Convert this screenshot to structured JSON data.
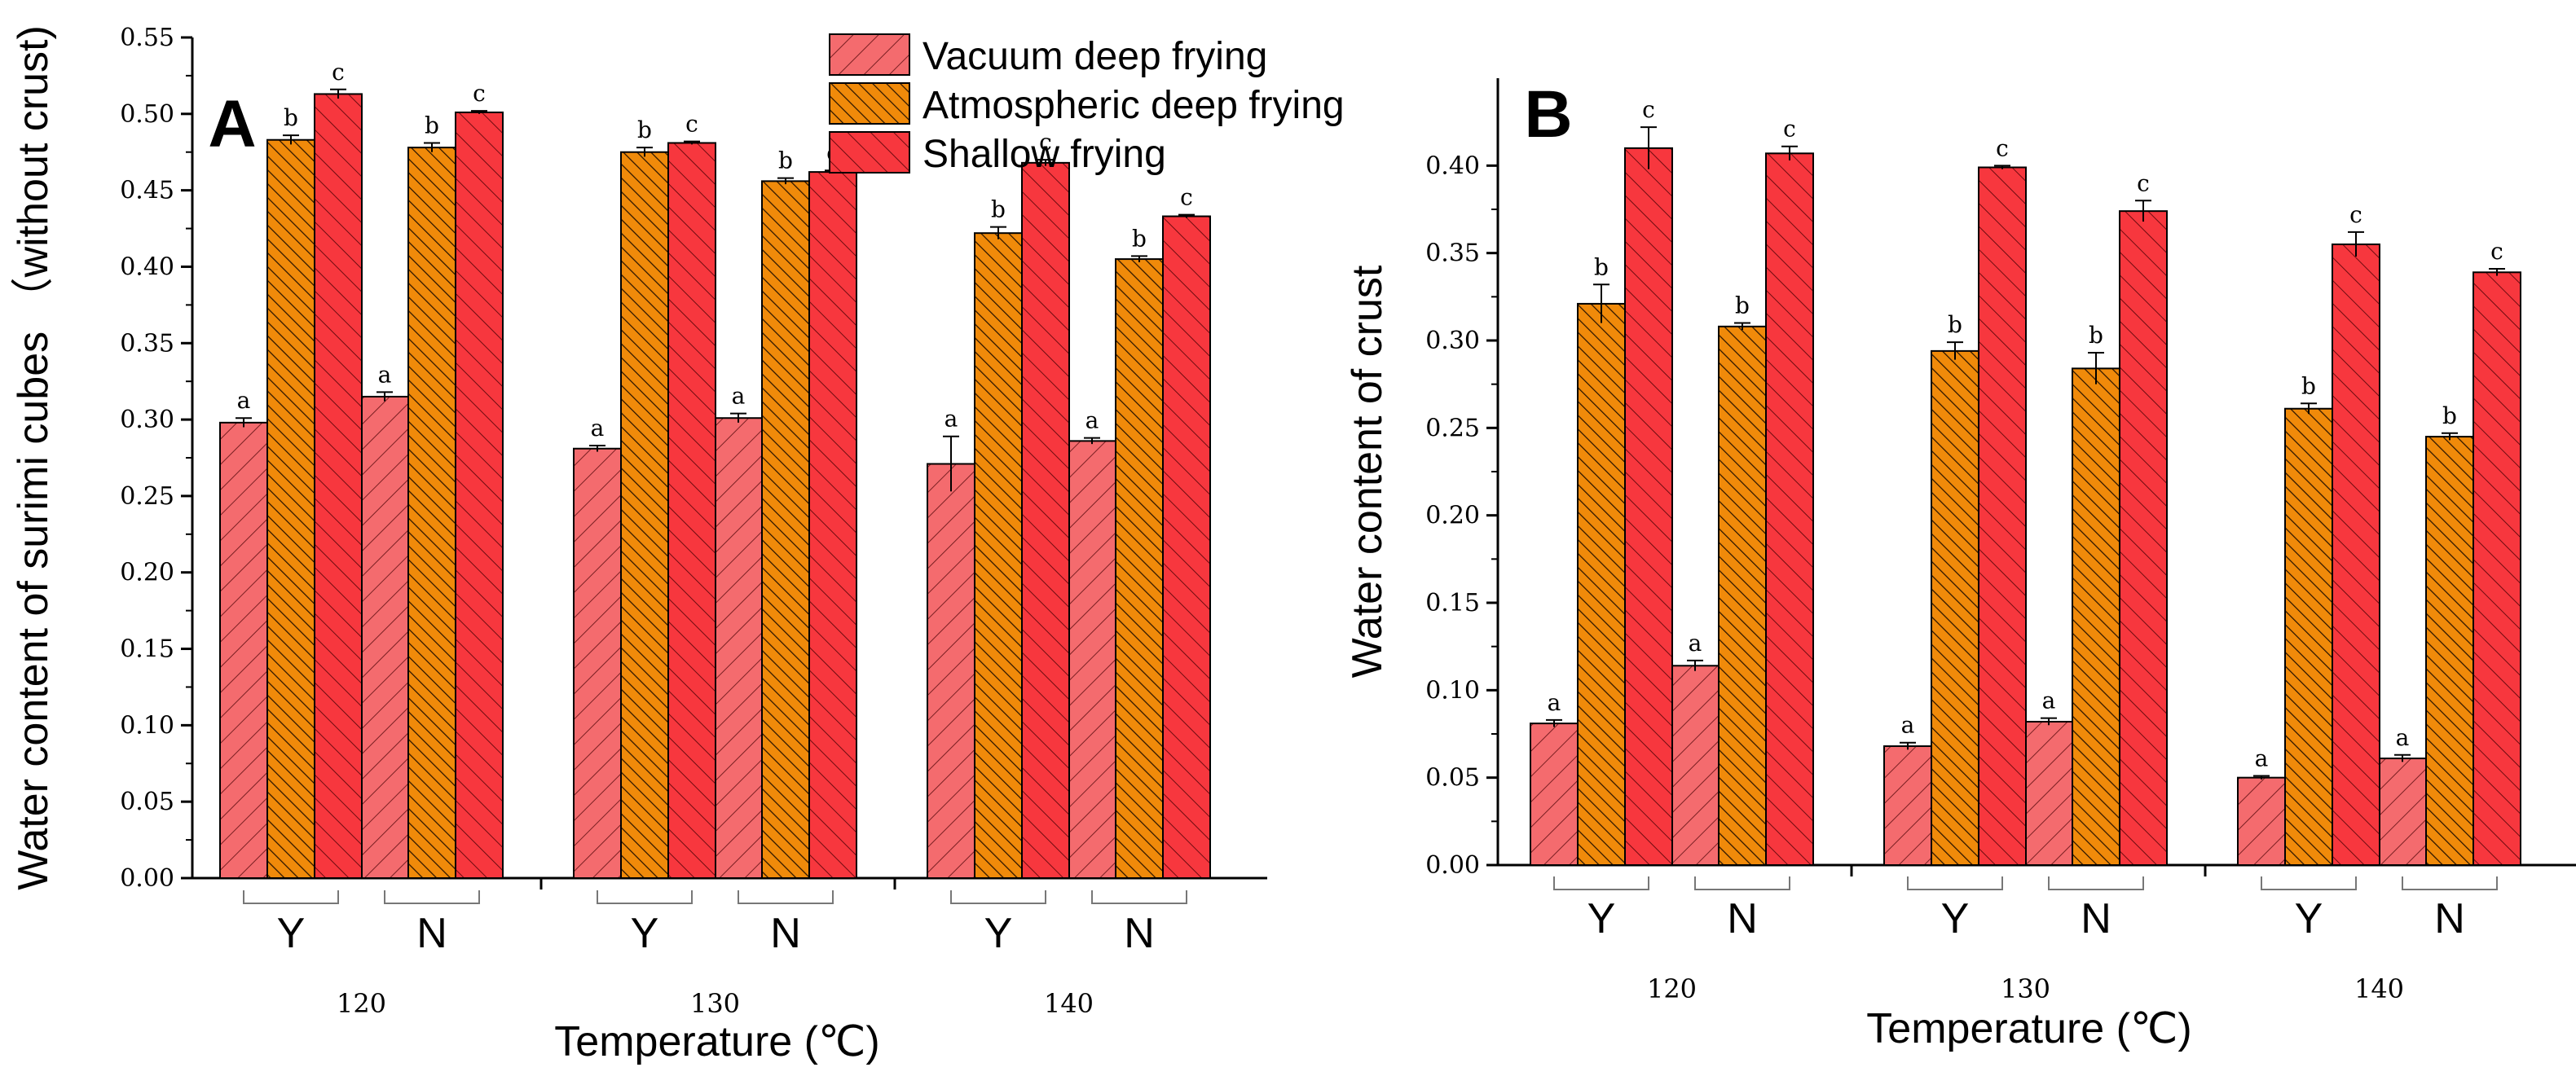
{
  "legend": {
    "items": [
      {
        "label": "Vacuum deep frying",
        "color": "#f46b6e"
      },
      {
        "label": "Atmospheric deep frying",
        "color": "#f08a0a"
      },
      {
        "label": "Shallow frying",
        "color": "#f7373e"
      }
    ]
  },
  "chart_data": [
    {
      "type": "bar",
      "panel": "A",
      "xlabel": "Temperature (℃)",
      "ylabel": "Water content of surimi cubes （without crust)",
      "ylim": [
        0,
        0.55
      ],
      "yticks": [
        "0.00",
        "0.05",
        "0.10",
        "0.15",
        "0.20",
        "0.25",
        "0.30",
        "0.35",
        "0.40",
        "0.45",
        "0.50",
        "0.55"
      ],
      "groups": [
        "120",
        "130",
        "140"
      ],
      "subgroups": [
        "Y",
        "N"
      ],
      "series": [
        {
          "name": "Vacuum deep frying",
          "values": [
            0.298,
            0.315,
            0.281,
            0.301,
            0.271,
            0.286
          ],
          "errors": [
            0.003,
            0.003,
            0.002,
            0.003,
            0.018,
            0.002
          ],
          "letters": [
            "a",
            "a",
            "a",
            "a",
            "a",
            "a"
          ]
        },
        {
          "name": "Atmospheric deep frying",
          "values": [
            0.483,
            0.478,
            0.475,
            0.456,
            0.422,
            0.405
          ],
          "errors": [
            0.003,
            0.003,
            0.003,
            0.002,
            0.004,
            0.002
          ],
          "letters": [
            "b",
            "b",
            "b",
            "b",
            "b",
            "b"
          ]
        },
        {
          "name": "Shallow frying",
          "values": [
            0.513,
            0.501,
            0.481,
            0.462,
            0.468,
            0.433
          ],
          "errors": [
            0.003,
            0.001,
            0.001,
            0.001,
            0.002,
            0.001
          ],
          "letters": [
            "c",
            "c",
            "c",
            "c",
            "c",
            "c"
          ]
        }
      ]
    },
    {
      "type": "bar",
      "panel": "B",
      "xlabel": "Temperature (℃)",
      "ylabel": "Water content of crust",
      "ylim": [
        0,
        0.45
      ],
      "yticks": [
        "0.00",
        "0.05",
        "0.10",
        "0.15",
        "0.20",
        "0.25",
        "0.30",
        "0.35",
        "0.40"
      ],
      "groups": [
        "120",
        "130",
        "140"
      ],
      "subgroups": [
        "Y",
        "N"
      ],
      "series": [
        {
          "name": "Vacuum deep frying",
          "values": [
            0.081,
            0.114,
            0.068,
            0.082,
            0.05,
            0.061
          ],
          "errors": [
            0.002,
            0.003,
            0.002,
            0.002,
            0.001,
            0.002
          ],
          "letters": [
            "a",
            "a",
            "a",
            "a",
            "a",
            "a"
          ]
        },
        {
          "name": "Atmospheric deep frying",
          "values": [
            0.321,
            0.308,
            0.294,
            0.284,
            0.261,
            0.245
          ],
          "errors": [
            0.011,
            0.002,
            0.005,
            0.009,
            0.003,
            0.002
          ],
          "letters": [
            "b",
            "b",
            "b",
            "b",
            "b",
            "b"
          ]
        },
        {
          "name": "Shallow frying",
          "values": [
            0.41,
            0.407,
            0.399,
            0.374,
            0.355,
            0.339
          ],
          "errors": [
            0.012,
            0.004,
            0.001,
            0.006,
            0.007,
            0.002
          ],
          "letters": [
            "c",
            "c",
            "c",
            "c",
            "c",
            "c"
          ]
        }
      ]
    }
  ]
}
